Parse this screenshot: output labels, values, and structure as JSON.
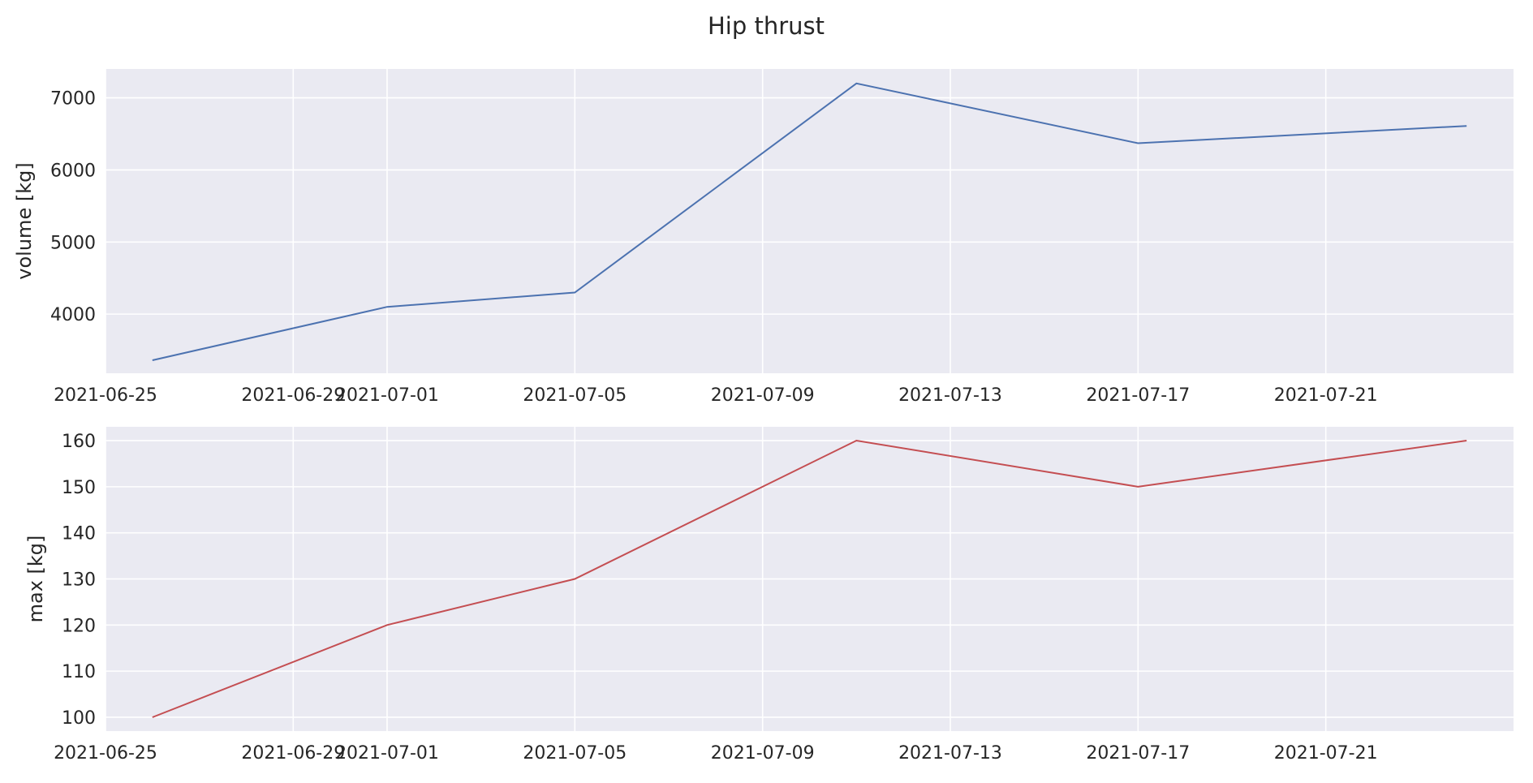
{
  "chart_data": {
    "type": "line",
    "title": "Hip thrust",
    "x": [
      "2021-06-26",
      "2021-07-01",
      "2021-07-05",
      "2021-07-11",
      "2021-07-17",
      "2021-07-24"
    ],
    "x_ticks": [
      "2021-06-25",
      "2021-06-29",
      "2021-07-01",
      "2021-07-05",
      "2021-07-09",
      "2021-07-13",
      "2021-07-17",
      "2021-07-21"
    ],
    "xlim": [
      "2021-06-25",
      "2021-07-25"
    ],
    "grid": true,
    "legend": "none",
    "subplots": [
      {
        "ylabel": "volume [kg]",
        "values": [
          3360,
          4100,
          4300,
          7200,
          6370,
          6610
        ],
        "ylim": [
          3180,
          7400
        ],
        "y_ticks": [
          4000,
          5000,
          6000,
          7000
        ],
        "color": "#4c72b0"
      },
      {
        "ylabel": "max [kg]",
        "values": [
          100,
          120,
          130,
          160,
          150,
          160
        ],
        "ylim": [
          97,
          163
        ],
        "y_ticks": [
          100,
          110,
          120,
          130,
          140,
          150,
          160
        ],
        "color": "#c44e52"
      }
    ]
  },
  "style": {
    "background": "#ffffff",
    "axes_face": "#eaeaf2",
    "grid": "#ffffff",
    "text": "#262626"
  }
}
